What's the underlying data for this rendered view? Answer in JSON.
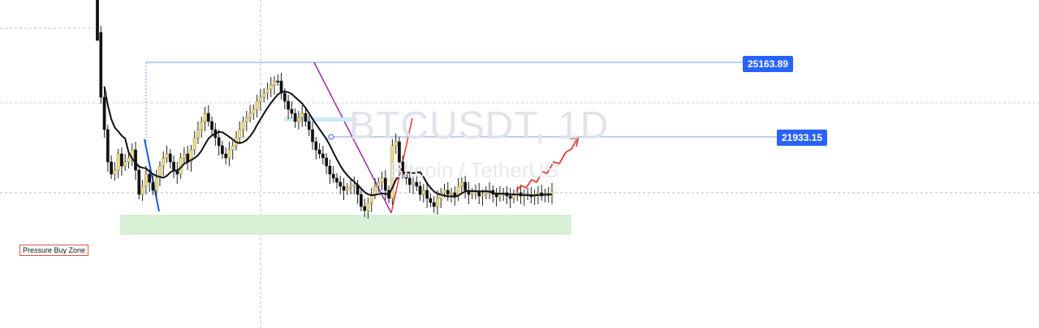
{
  "watermark": {
    "symbol": "BTCUSDT, 1D",
    "description": "Bitcoin / TetherUS"
  },
  "levels": {
    "upper": "25163.89",
    "lower": "21933.15"
  },
  "zone_label": "Pressure Buy Zone",
  "colors": {
    "bull": "#26a69a",
    "bear": "#000000",
    "ma": "#111111",
    "level_line": "#2962ff",
    "zone": "#d6efd4",
    "arrow": "#e53935",
    "trend_purple": "#9c27b0",
    "trend_blue": "#1e5bd8"
  },
  "chart_data": {
    "type": "candlestick",
    "symbol": "BTCUSDT",
    "timeframe": "1D",
    "horizontal_levels": [
      25163.89,
      21933.15
    ],
    "annotations": [
      "Pressure Buy Zone"
    ]
  }
}
